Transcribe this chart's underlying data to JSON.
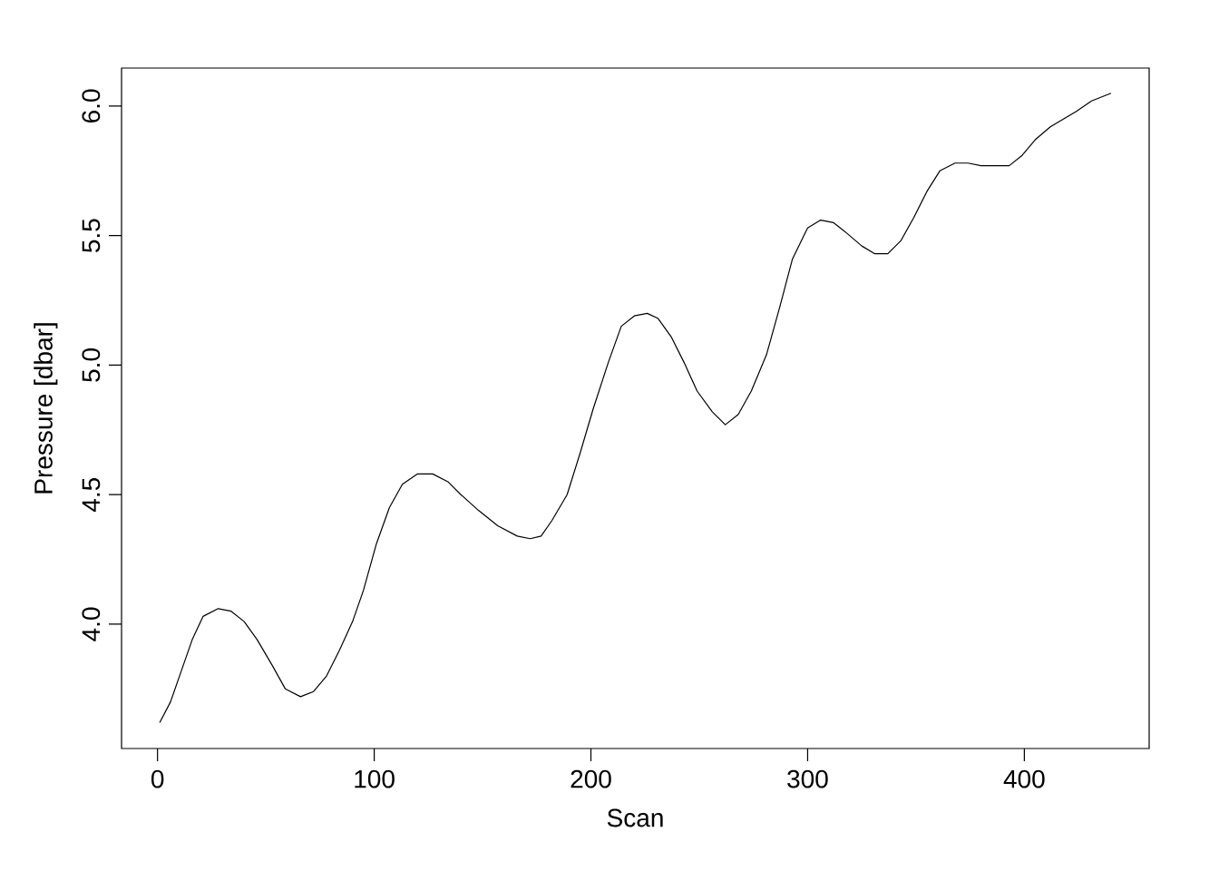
{
  "chart_data": {
    "type": "line",
    "xlabel": "Scan",
    "ylabel": "Pressure [dbar]",
    "xlim": [
      -16.6,
      457.6
    ],
    "ylim": [
      3.52,
      6.147
    ],
    "xticks": [
      0,
      100,
      200,
      300,
      400
    ],
    "yticks": [
      {
        "value": 4,
        "label": "4.0"
      },
      {
        "value": 4.5,
        "label": "4.5"
      },
      {
        "value": 5,
        "label": "5.0"
      },
      {
        "value": 5.5,
        "label": "5.5"
      },
      {
        "value": 6,
        "label": "6.0"
      }
    ],
    "series": [
      {
        "color": "#000000",
        "x": [
          1,
          6,
          11,
          16,
          21,
          28,
          34,
          40,
          46,
          53,
          59,
          66,
          72,
          78,
          84,
          90,
          95,
          101,
          107,
          113,
          120,
          127,
          134,
          140,
          148,
          157,
          166,
          172,
          177,
          182,
          189,
          195,
          201,
          208,
          214,
          220,
          226,
          231,
          237,
          243,
          249,
          256,
          262,
          268,
          274,
          281,
          287,
          293,
          300,
          306,
          312,
          318,
          325,
          331,
          337,
          343,
          349,
          355,
          361,
          368,
          374,
          380,
          386,
          393,
          399,
          405,
          412,
          418,
          424,
          431,
          437,
          440
        ],
        "values": [
          3.62,
          3.7,
          3.82,
          3.94,
          4.03,
          4.06,
          4.05,
          4.01,
          3.94,
          3.84,
          3.75,
          3.72,
          3.74,
          3.8,
          3.9,
          4.01,
          4.13,
          4.31,
          4.45,
          4.54,
          4.58,
          4.58,
          4.55,
          4.5,
          4.44,
          4.38,
          4.34,
          4.33,
          4.34,
          4.4,
          4.5,
          4.66,
          4.83,
          5.01,
          5.15,
          5.19,
          5.2,
          5.18,
          5.11,
          5.01,
          4.9,
          4.82,
          4.77,
          4.81,
          4.9,
          5.04,
          5.22,
          5.41,
          5.53,
          5.56,
          5.55,
          5.51,
          5.46,
          5.43,
          5.43,
          5.48,
          5.57,
          5.67,
          5.75,
          5.78,
          5.78,
          5.77,
          5.77,
          5.77,
          5.81,
          5.87,
          5.92,
          5.95,
          5.98,
          6.02,
          6.04,
          6.05
        ]
      }
    ]
  }
}
